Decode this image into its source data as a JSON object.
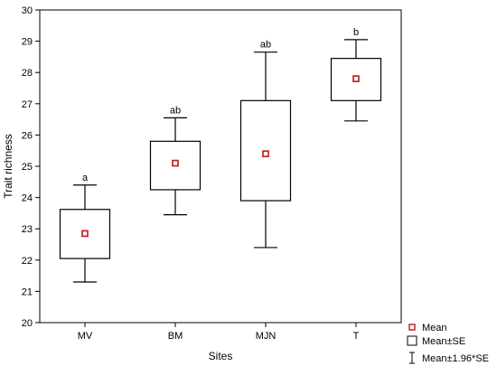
{
  "chart_data": {
    "type": "box",
    "xlabel": "Sites",
    "ylabel": "Trait richness",
    "ylim": [
      20,
      30
    ],
    "yticks": [
      20,
      21,
      22,
      23,
      24,
      25,
      26,
      27,
      28,
      29,
      30
    ],
    "categories": [
      "MV",
      "BM",
      "MJN",
      "T"
    ],
    "series": [
      {
        "category": "MV",
        "mean": 22.85,
        "se_low": 22.05,
        "se_high": 23.62,
        "ci_low": 21.3,
        "ci_high": 24.4,
        "label": "a"
      },
      {
        "category": "BM",
        "mean": 25.1,
        "se_low": 24.25,
        "se_high": 25.8,
        "ci_low": 23.45,
        "ci_high": 26.55,
        "label": "ab"
      },
      {
        "category": "MJN",
        "mean": 25.4,
        "se_low": 23.9,
        "se_high": 27.1,
        "ci_low": 22.4,
        "ci_high": 28.65,
        "label": "ab"
      },
      {
        "category": "T",
        "mean": 27.8,
        "se_low": 27.1,
        "se_high": 28.45,
        "ci_low": 26.45,
        "ci_high": 29.05,
        "label": "b"
      }
    ],
    "legend": {
      "position": "bottom-right",
      "items": [
        "Mean",
        "Mean±SE",
        "Mean±1.96*SE"
      ]
    },
    "colors": {
      "mean_marker": "#c0171c",
      "line": "#000000"
    },
    "grid": false
  }
}
